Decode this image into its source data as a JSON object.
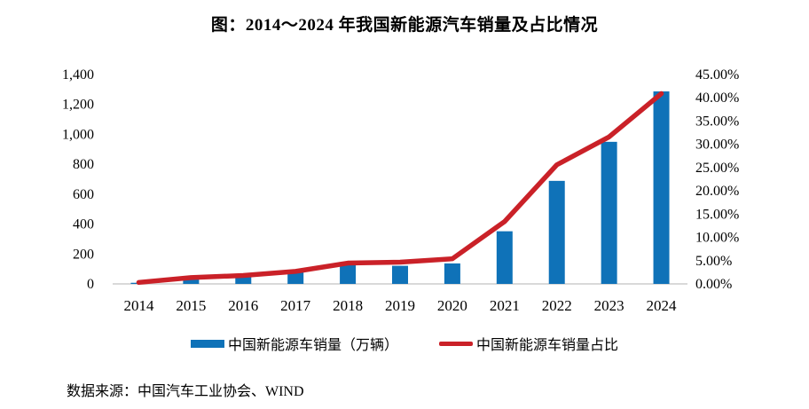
{
  "title": "图：2014～2024 年我国新能源汽车销量及占比情况",
  "source": "数据来源：中国汽车工业协会、WIND",
  "legend": {
    "bars_label": "中国新能源车销量（万辆）",
    "line_label": "中国新能源车销量占比"
  },
  "colors": {
    "bar": "#0F72B8",
    "line": "#CA2128",
    "axis": "#D9D9D9",
    "text": "#000000"
  },
  "chart_data": {
    "type": "bar",
    "subtype": "bar+line combo, dual y-axis",
    "title": "图：2014～2024 年我国新能源汽车销量及占比情况",
    "categories": [
      "2014",
      "2015",
      "2016",
      "2017",
      "2018",
      "2019",
      "2020",
      "2021",
      "2022",
      "2023",
      "2024"
    ],
    "series": [
      {
        "name": "中国新能源车销量（万辆）",
        "type": "bar",
        "axis": "left",
        "values": [
          7.5,
          33,
          51,
          78,
          126,
          121,
          137,
          352,
          689,
          950,
          1287
        ]
      },
      {
        "name": "中国新能源车销量占比",
        "type": "line",
        "axis": "right",
        "values": [
          0.32,
          1.35,
          1.81,
          2.69,
          4.47,
          4.68,
          5.4,
          13.4,
          25.6,
          31.6,
          40.9
        ]
      }
    ],
    "left_axis": {
      "min": 0,
      "max": 1400,
      "tick_step": 200,
      "tick_labels": [
        "0",
        "200",
        "400",
        "600",
        "800",
        "1,000",
        "1,200",
        "1,400"
      ]
    },
    "right_axis": {
      "min": 0,
      "max": 45,
      "tick_step": 5,
      "tick_labels": [
        "0.00%",
        "5.00%",
        "10.00%",
        "15.00%",
        "20.00%",
        "25.00%",
        "30.00%",
        "35.00%",
        "40.00%",
        "45.00%"
      ]
    },
    "grid": false,
    "legend_position": "bottom",
    "xlabel": "",
    "ylabel_left": "",
    "ylabel_right": ""
  }
}
